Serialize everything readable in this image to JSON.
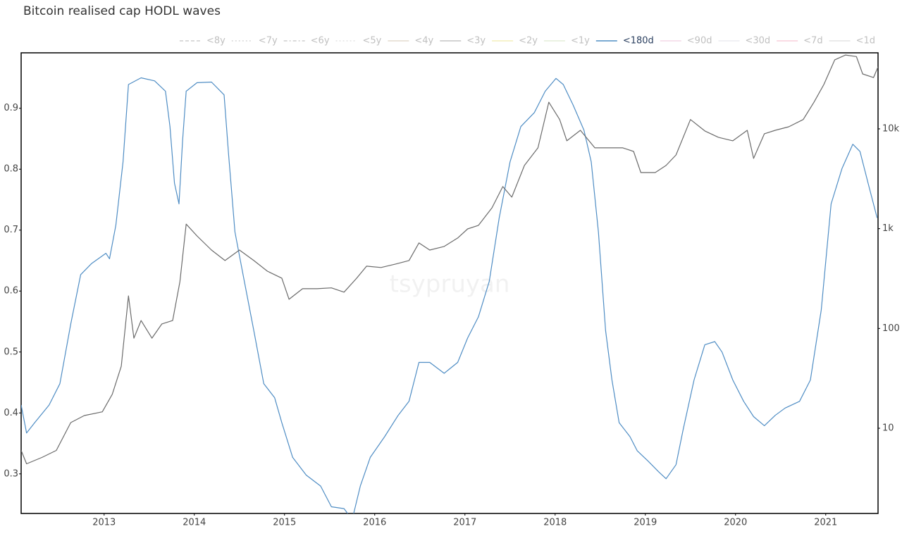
{
  "chart_data": {
    "type": "line",
    "title": "Bitcoin realised cap HODL waves",
    "watermark": "tsypruyan",
    "xlim": [
      2012.08,
      2021.58
    ],
    "xticks": [
      2013,
      2014,
      2015,
      2016,
      2017,
      2018,
      2019,
      2020,
      2021
    ],
    "ylim": [
      0.235,
      0.991
    ],
    "yticks": [
      0.3,
      0.4,
      0.5,
      0.6,
      0.7,
      0.8,
      0.9
    ],
    "y2lim": [
      1.4,
      57800
    ],
    "y2ticks": [
      10,
      100,
      {
        "value": 1000,
        "label": "1k"
      },
      {
        "value": 10000,
        "label": "10k"
      }
    ],
    "y2_log": true,
    "grid": false,
    "legend_position": "top-right",
    "series": [
      {
        "name": "<8y",
        "color": "#9e9e9e",
        "dash": "dash",
        "visible": false
      },
      {
        "name": "<7y",
        "color": "#b0b0b0",
        "dash": "dot",
        "visible": false
      },
      {
        "name": "<6y",
        "color": "#9e9e9e",
        "dash": "dashdot",
        "visible": false
      },
      {
        "name": "<5y",
        "color": "#c8c8c8",
        "dash": "dot",
        "visible": false
      },
      {
        "name": "<4y",
        "color": "#c9b79c",
        "dash": "solid",
        "visible": false
      },
      {
        "name": "<3y",
        "color": "#8a8a8a",
        "dash": "solid",
        "visible": false
      },
      {
        "name": "<2y",
        "color": "#e6e07a",
        "dash": "solid",
        "visible": false
      },
      {
        "name": "<1y",
        "color": "#c7dfb2",
        "dash": "solid",
        "visible": false
      },
      {
        "name": "<180d",
        "color": "#4f8dc4",
        "dash": "solid",
        "visible": true,
        "x": [
          2012.08,
          2012.14,
          2012.23,
          2012.39,
          2012.51,
          2012.63,
          2012.74,
          2012.86,
          2013.02,
          2013.06,
          2013.13,
          2013.21,
          2013.27,
          2013.41,
          2013.56,
          2013.68,
          2013.73,
          2013.78,
          2013.83,
          2013.87,
          2013.91,
          2014.03,
          2014.19,
          2014.33,
          2014.38,
          2014.45,
          2014.54,
          2014.66,
          2014.77,
          2014.89,
          2014.97,
          2015.09,
          2015.24,
          2015.4,
          2015.52,
          2015.66,
          2015.75,
          2015.84,
          2015.95,
          2016.11,
          2016.26,
          2016.38,
          2016.49,
          2016.61,
          2016.77,
          2016.92,
          2017.03,
          2017.15,
          2017.27,
          2017.38,
          2017.5,
          2017.62,
          2017.77,
          2017.89,
          2018.01,
          2018.09,
          2018.2,
          2018.32,
          2018.4,
          2018.48,
          2018.56,
          2018.63,
          2018.71,
          2018.83,
          2018.91,
          2019.03,
          2019.15,
          2019.23,
          2019.34,
          2019.42,
          2019.54,
          2019.66,
          2019.77,
          2019.85,
          2019.97,
          2020.09,
          2020.2,
          2020.32,
          2020.44,
          2020.55,
          2020.71,
          2020.83,
          2020.95,
          2021.06,
          2021.18,
          2021.3,
          2021.38,
          2021.47,
          2021.57
        ],
        "values": [
          0.413,
          0.367,
          0.384,
          0.413,
          0.448,
          0.546,
          0.627,
          0.645,
          0.662,
          0.653,
          0.708,
          0.812,
          0.939,
          0.95,
          0.945,
          0.928,
          0.87,
          0.777,
          0.743,
          0.847,
          0.928,
          0.942,
          0.943,
          0.922,
          0.824,
          0.697,
          0.627,
          0.535,
          0.448,
          0.425,
          0.384,
          0.327,
          0.298,
          0.28,
          0.246,
          0.243,
          0.225,
          0.28,
          0.327,
          0.361,
          0.396,
          0.419,
          0.483,
          0.483,
          0.465,
          0.483,
          0.523,
          0.558,
          0.616,
          0.72,
          0.812,
          0.87,
          0.893,
          0.928,
          0.949,
          0.939,
          0.905,
          0.864,
          0.812,
          0.697,
          0.535,
          0.454,
          0.384,
          0.361,
          0.338,
          0.321,
          0.303,
          0.292,
          0.315,
          0.373,
          0.454,
          0.512,
          0.517,
          0.5,
          0.454,
          0.419,
          0.394,
          0.379,
          0.396,
          0.408,
          0.419,
          0.454,
          0.569,
          0.743,
          0.801,
          0.841,
          0.829,
          0.777,
          0.72
        ]
      },
      {
        "name": "<90d",
        "color": "#e8b4cf",
        "dash": "solid",
        "visible": false
      },
      {
        "name": "<30d",
        "color": "#d9d9e3",
        "dash": "solid",
        "visible": false
      },
      {
        "name": "<7d",
        "color": "#f2a0b8",
        "dash": "solid",
        "visible": false
      },
      {
        "name": "<1d",
        "color": "#c8c8c8",
        "dash": "solid",
        "visible": false
      },
      {
        "color": "#6b6b6b",
        "axis": "y2",
        "visible": true,
        "x": [
          2012.08,
          2012.14,
          2012.31,
          2012.47,
          2012.63,
          2012.78,
          2012.98,
          2013.09,
          2013.19,
          2013.27,
          2013.33,
          2013.41,
          2013.53,
          2013.64,
          2013.76,
          2013.84,
          2013.91,
          2014.03,
          2014.19,
          2014.34,
          2014.5,
          2014.66,
          2014.81,
          2014.97,
          2015.05,
          2015.2,
          2015.36,
          2015.52,
          2015.66,
          2015.8,
          2015.91,
          2016.07,
          2016.23,
          2016.38,
          2016.49,
          2016.61,
          2016.77,
          2016.92,
          2017.03,
          2017.15,
          2017.3,
          2017.42,
          2017.52,
          2017.66,
          2017.81,
          2017.93,
          2018.05,
          2018.13,
          2018.28,
          2018.44,
          2018.59,
          2018.75,
          2018.87,
          2018.95,
          2019.11,
          2019.23,
          2019.34,
          2019.5,
          2019.66,
          2019.81,
          2019.97,
          2020.13,
          2020.2,
          2020.32,
          2020.44,
          2020.59,
          2020.75,
          2020.87,
          2020.98,
          2021.1,
          2021.22,
          2021.34,
          2021.41,
          2021.53,
          2021.58
        ],
        "values": [
          6,
          4.4,
          5.1,
          6,
          11.4,
          13.4,
          14.6,
          21.9,
          41.9,
          212,
          80,
          120,
          80,
          111,
          120,
          294,
          1110,
          845,
          611,
          479,
          611,
          479,
          375,
          319,
          196,
          250,
          250,
          255,
          231,
          319,
          421,
          408,
          442,
          479,
          719,
          611,
          663,
          806,
          995,
          1080,
          1620,
          2640,
          2070,
          4300,
          6450,
          18500,
          12400,
          7590,
          9680,
          6450,
          6450,
          6450,
          5940,
          3650,
          3650,
          4300,
          5480,
          12400,
          9530,
          8230,
          7590,
          9680,
          5060,
          8930,
          9680,
          10500,
          12400,
          18500,
          27900,
          49200,
          55000,
          53000,
          35500,
          32700,
          41800
        ]
      }
    ]
  }
}
